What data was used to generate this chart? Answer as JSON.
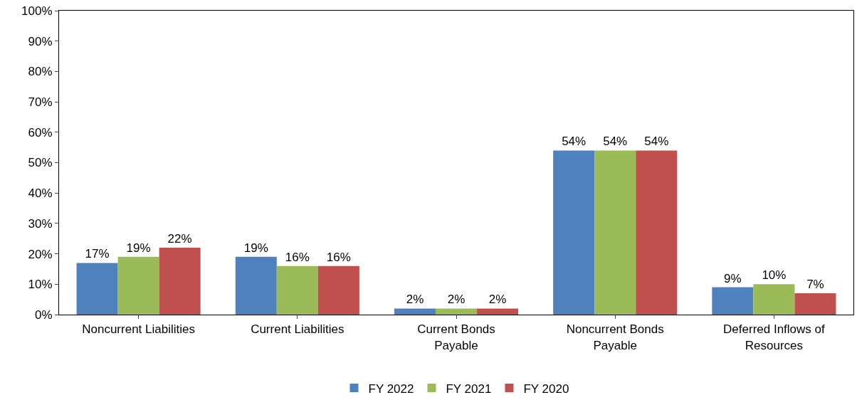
{
  "chart_data": {
    "type": "bar",
    "categories": [
      "Noncurrent Liabilities",
      "Current Liabilities",
      "Current Bonds Payable",
      "Noncurrent Bonds Payable",
      "Deferred Inflows of Resources"
    ],
    "series": [
      {
        "name": "FY 2022",
        "color": "#4f81bd",
        "values": [
          17,
          19,
          2,
          54,
          9
        ],
        "value_labels": [
          "17%",
          "19%",
          "2%",
          "54%",
          "9%"
        ]
      },
      {
        "name": "FY 2021",
        "color": "#9bbb59",
        "values": [
          19,
          16,
          2,
          54,
          10
        ],
        "value_labels": [
          "19%",
          "16%",
          "2%",
          "54%",
          "10%"
        ]
      },
      {
        "name": "FY 2020",
        "color": "#c0504d",
        "values": [
          22,
          16,
          2,
          54,
          7
        ],
        "value_labels": [
          "22%",
          "16%",
          "2%",
          "54%",
          "7%"
        ]
      }
    ],
    "ylim": [
      0,
      100
    ],
    "yticks": [
      {
        "value": 0,
        "label": "0%"
      },
      {
        "value": 10,
        "label": "10%"
      },
      {
        "value": 20,
        "label": "20%"
      },
      {
        "value": 30,
        "label": "30%"
      },
      {
        "value": 40,
        "label": "40%"
      },
      {
        "value": 50,
        "label": "50%"
      },
      {
        "value": 60,
        "label": "60%"
      },
      {
        "value": 70,
        "label": "70%"
      },
      {
        "value": 80,
        "label": "80%"
      },
      {
        "value": 90,
        "label": "90%"
      },
      {
        "value": 100,
        "label": "100%"
      }
    ],
    "legend": "bottom",
    "grid": false
  }
}
